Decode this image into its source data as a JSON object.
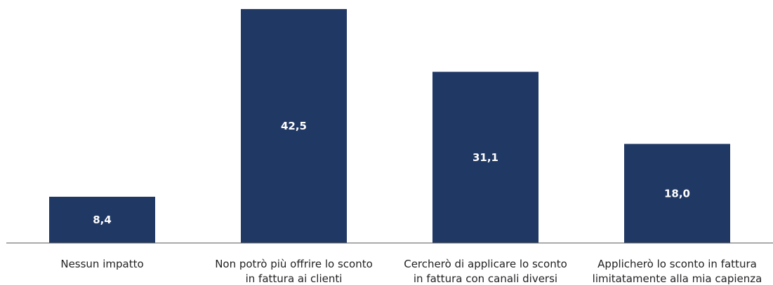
{
  "chart_data": {
    "type": "bar",
    "categories": [
      "Nessun impatto",
      "Non potrò più offrire lo sconto\nin fattura ai clienti",
      "Cercherò di applicare lo sconto\nin fattura con canali diversi",
      "Applicherò lo sconto in fattura\nlimitatamente alla mia capienza"
    ],
    "values": [
      8.4,
      42.5,
      31.1,
      18.0
    ],
    "value_labels": [
      "8,4",
      "42,5",
      "31,1",
      "18,0"
    ],
    "color": "#203864",
    "ylim": [
      0,
      43
    ]
  }
}
